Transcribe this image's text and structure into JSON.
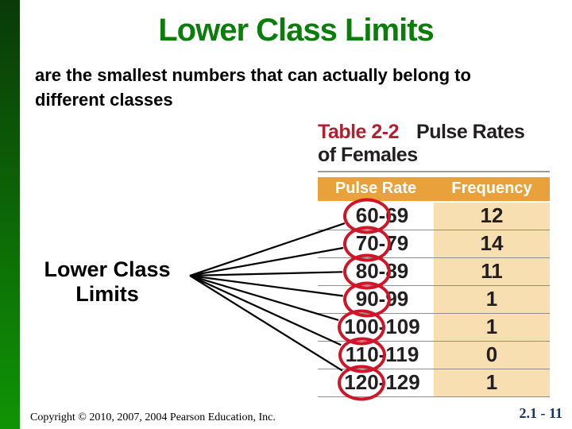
{
  "colors": {
    "title-green": "#0a7d0a",
    "bar-top": "#0a3a08",
    "bar-bottom": "#0f9405",
    "table-title-red": "#b0202e",
    "header-orange": "#e9a23b",
    "freq-tan": "#f8dfb2",
    "ring-red": "#cf1528",
    "text-dark": "#231f20",
    "separator": "#8e8e8e",
    "connector": "#000000",
    "page-number-navy": "#1b3360"
  },
  "slide": {
    "title": "Lower Class Limits",
    "body_lines": [
      "are the smallest numbers that can actually belong to",
      "different classes"
    ],
    "annotation_label_lines": [
      "Lower Class",
      "Limits"
    ],
    "footer": {
      "copyright": "Copyright © 2010, 2007, 2004 Pearson Education, Inc.",
      "page_number": "2.1 - 11"
    }
  },
  "table": {
    "title_prefix": "Table 2-2",
    "title_text": "Pulse Rates of Females",
    "columns": [
      "Pulse Rate",
      "Frequency"
    ],
    "rows": [
      {
        "range_lower": "60",
        "range_rest": "-69",
        "frequency": "12"
      },
      {
        "range_lower": "70",
        "range_rest": "-79",
        "frequency": "14"
      },
      {
        "range_lower": "80",
        "range_rest": "-89",
        "frequency": "11"
      },
      {
        "range_lower": "90",
        "range_rest": "-99",
        "frequency": "1"
      },
      {
        "range_lower": "100",
        "range_rest": "-109",
        "frequency": "1"
      },
      {
        "range_lower": "110",
        "range_rest": "-119",
        "frequency": "0"
      },
      {
        "range_lower": "120",
        "range_rest": "-129",
        "frequency": "1"
      }
    ]
  }
}
